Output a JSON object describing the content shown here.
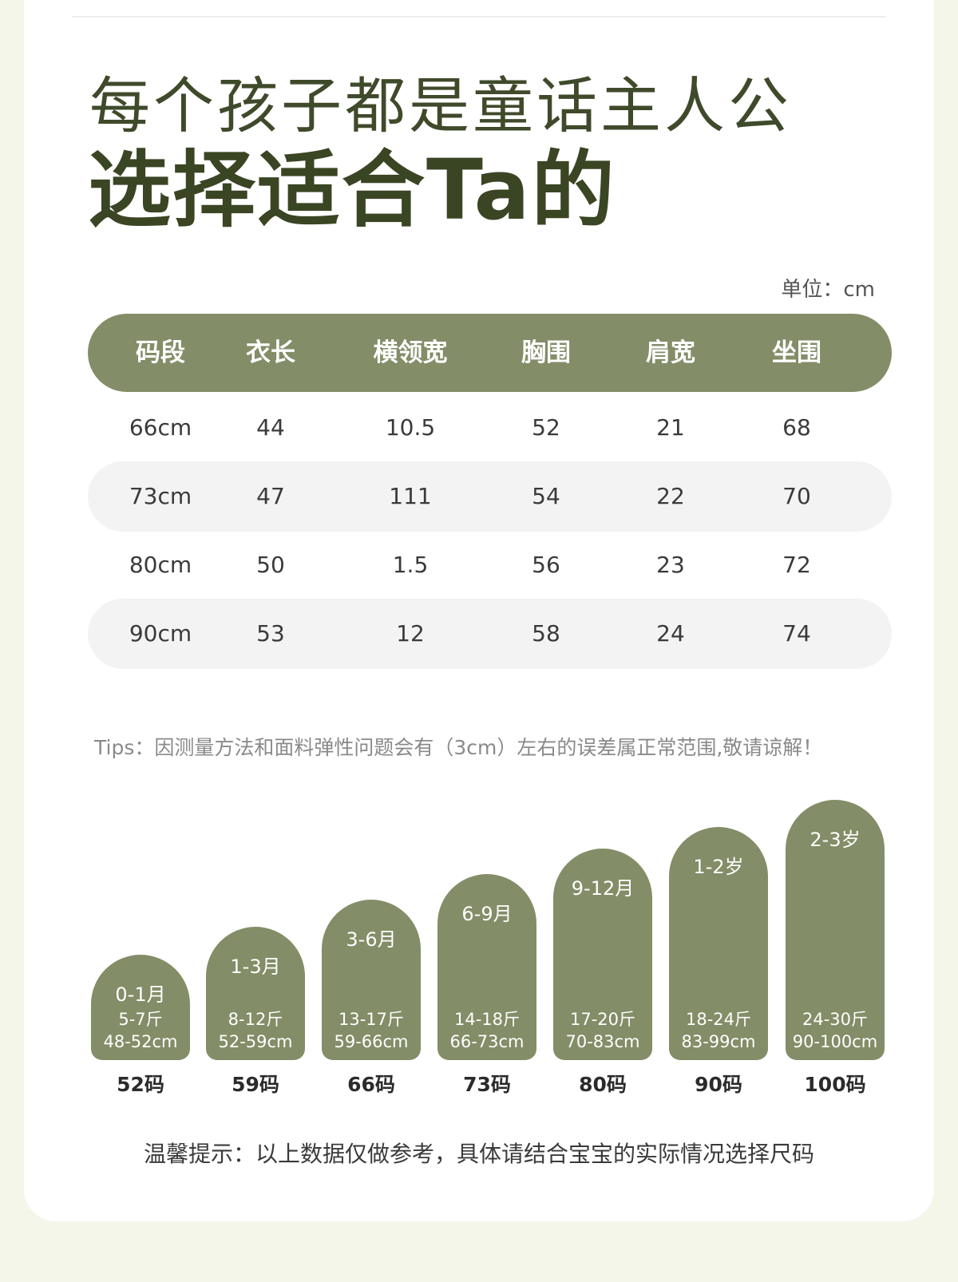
{
  "title_line1": "每个孩子都是童话主人公",
  "title_line2": "选择适合Ta的",
  "unit_label": "单位：cm",
  "table": {
    "headers": [
      "码段",
      "衣长",
      "横领宽",
      "胸围",
      "肩宽",
      "坐围"
    ],
    "rows": [
      [
        "66cm",
        "44",
        "10.5",
        "52",
        "21",
        "68"
      ],
      [
        "73cm",
        "47",
        "111",
        "54",
        "22",
        "70"
      ],
      [
        "80cm",
        "50",
        "1.5",
        "56",
        "23",
        "72"
      ],
      [
        "90cm",
        "53",
        "12",
        "58",
        "24",
        "74"
      ]
    ]
  },
  "tips": "Tips：因测量方法和面料弹性问题会有（3cm）左右的误差属正常范围,敬请谅解！",
  "size_guide": [
    {
      "age": "0-1月",
      "weight": "5-7斤",
      "height": "48-52cm",
      "size": "52码"
    },
    {
      "age": "1-3月",
      "weight": "8-12斤",
      "height": "52-59cm",
      "size": "59码"
    },
    {
      "age": "3-6月",
      "weight": "13-17斤",
      "height": "59-66cm",
      "size": "66码"
    },
    {
      "age": "6-9月",
      "weight": "14-18斤",
      "height": "66-73cm",
      "size": "73码"
    },
    {
      "age": "9-12月",
      "weight": "17-20斤",
      "height": "70-83cm",
      "size": "80码"
    },
    {
      "age": "1-2岁",
      "weight": "18-24斤",
      "height": "83-99cm",
      "size": "90码"
    },
    {
      "age": "2-3岁",
      "weight": "24-30斤",
      "height": "90-100cm",
      "size": "100码"
    }
  ],
  "note": "温馨提示：以上数据仅做参考，具体请结合宝宝的实际情况选择尺码",
  "colors": {
    "accent": "#838d67",
    "title": "#3a4524",
    "row_shade": "#f3f3f3",
    "page_bg": "#f3f6e8"
  }
}
